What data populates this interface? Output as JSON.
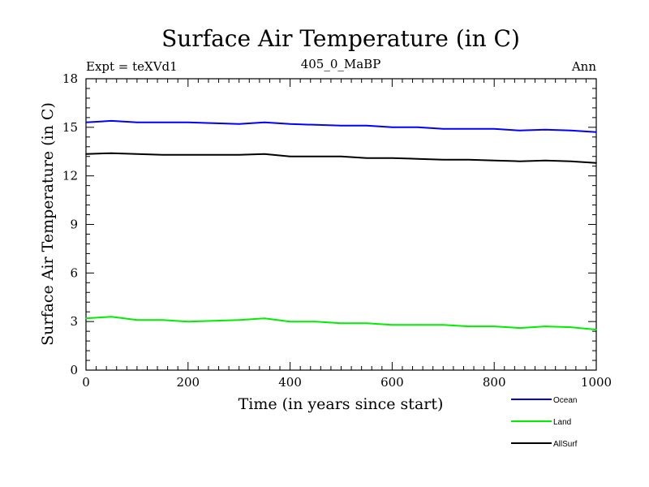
{
  "chart_data": {
    "type": "line",
    "title": "Surface Air Temperature (in C)",
    "subtitle": "405_0_MaBP",
    "left_label": "Expt = teXVd1",
    "right_label": "Ann",
    "xlabel": "Time (in years since start)",
    "ylabel": "Surface Air Temperature (in C)",
    "xlim": [
      0,
      1000
    ],
    "ylim": [
      0,
      18
    ],
    "x_ticks": [
      0,
      200,
      400,
      600,
      800,
      1000
    ],
    "y_ticks": [
      0,
      3,
      6,
      9,
      12,
      15,
      18
    ],
    "x_tick_labels": [
      "0",
      "200",
      "400",
      "600",
      "800",
      "1000"
    ],
    "y_tick_labels": [
      "0",
      "3",
      "6",
      "9",
      "12",
      "15",
      "18"
    ],
    "grid": false,
    "legend_position": "bottom-right, outside plot",
    "series": [
      {
        "name": "Ocean",
        "color": "#0000ff",
        "x": [
          0,
          50,
          100,
          150,
          200,
          250,
          300,
          350,
          400,
          450,
          500,
          550,
          600,
          650,
          700,
          750,
          800,
          850,
          900,
          950,
          1000
        ],
        "values": [
          15.3,
          15.4,
          15.3,
          15.3,
          15.3,
          15.25,
          15.2,
          15.3,
          15.2,
          15.15,
          15.1,
          15.1,
          15.0,
          15.0,
          14.9,
          14.9,
          14.9,
          14.8,
          14.85,
          14.8,
          14.7
        ]
      },
      {
        "name": "Land",
        "color": "#00ee00",
        "x": [
          0,
          50,
          100,
          150,
          200,
          250,
          300,
          350,
          400,
          450,
          500,
          550,
          600,
          650,
          700,
          750,
          800,
          850,
          900,
          950,
          1000
        ],
        "values": [
          3.2,
          3.3,
          3.1,
          3.1,
          3.0,
          3.05,
          3.1,
          3.2,
          3.0,
          3.0,
          2.9,
          2.9,
          2.8,
          2.8,
          2.8,
          2.7,
          2.7,
          2.6,
          2.7,
          2.65,
          2.5
        ]
      },
      {
        "name": "AllSurf",
        "color": "#000000",
        "x": [
          0,
          50,
          100,
          150,
          200,
          250,
          300,
          350,
          400,
          450,
          500,
          550,
          600,
          650,
          700,
          750,
          800,
          850,
          900,
          950,
          1000
        ],
        "values": [
          13.35,
          13.4,
          13.35,
          13.3,
          13.3,
          13.3,
          13.3,
          13.35,
          13.2,
          13.2,
          13.2,
          13.1,
          13.1,
          13.05,
          13.0,
          13.0,
          12.95,
          12.9,
          12.95,
          12.9,
          12.8
        ]
      }
    ]
  }
}
